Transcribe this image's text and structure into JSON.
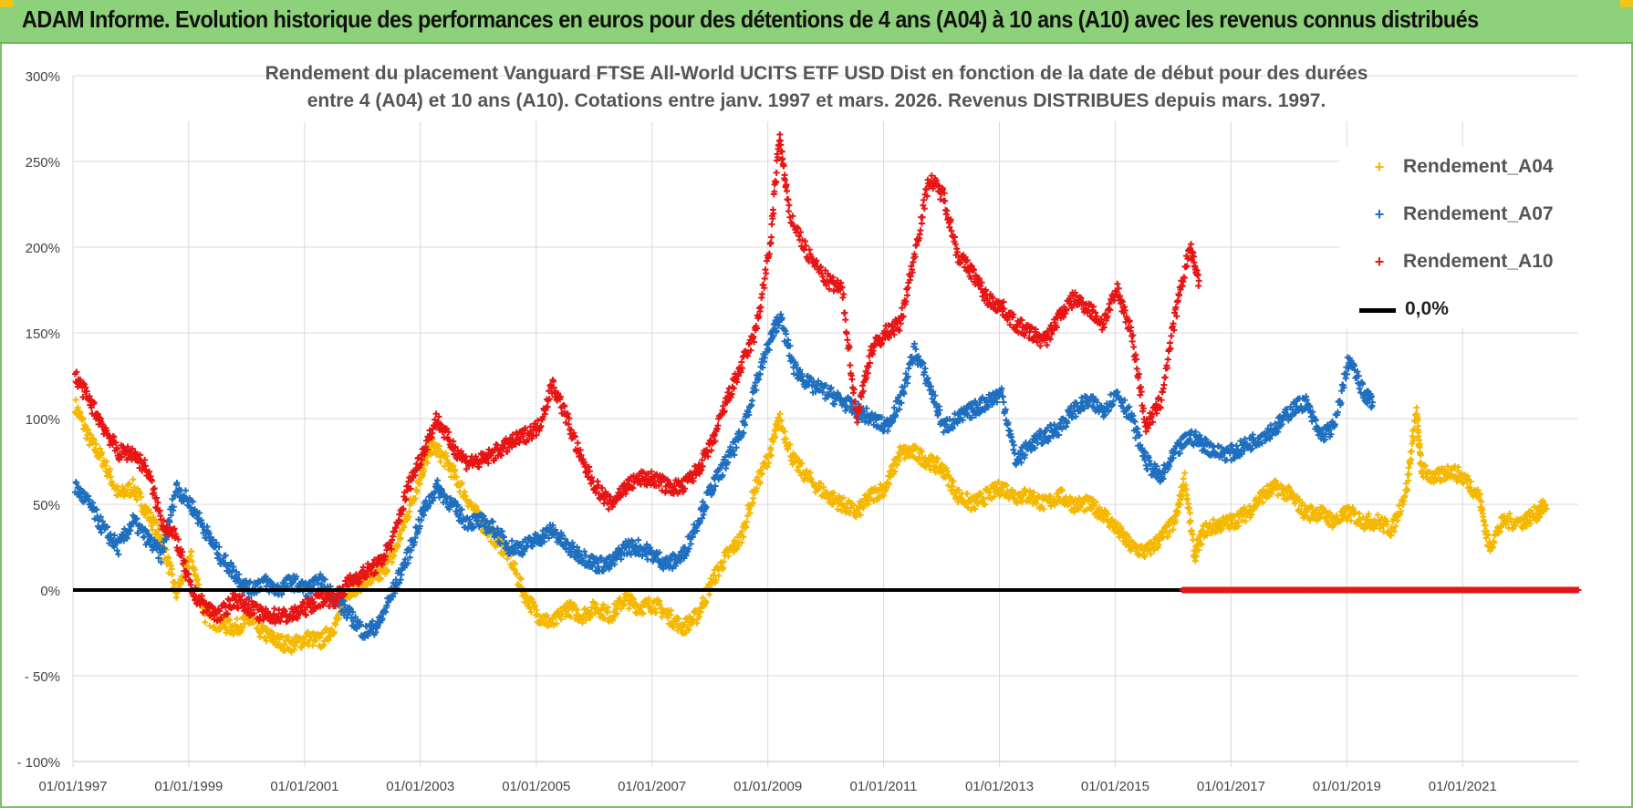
{
  "header": {
    "title": "ADAM Informe. Evolution historique des performances en euros pour des détentions de 4 ans (A04) à 10 ans (A10) avec les revenus connus distribués",
    "background": "#8dd17a"
  },
  "chart_data": {
    "type": "scatter",
    "title_line1": "Rendement du placement Vanguard FTSE All-World UCITS ETF USD Dist en fonction de la date de début pour des durées",
    "title_line2": "entre 4 (A04) et 10 ans (A10).  Cotations entre janv. 1997 et mars. 2026. Revenus DISTRIBUES depuis mars. 1997.",
    "xlabel": "",
    "ylabel": "",
    "x_range": [
      "1997-01-01",
      "2022-12-31"
    ],
    "x_ticks": [
      "01/01/1997",
      "01/01/1999",
      "01/01/2001",
      "01/01/2003",
      "01/01/2005",
      "01/01/2007",
      "01/01/2009",
      "01/01/2011",
      "01/01/2013",
      "01/01/2015",
      "01/01/2017",
      "01/01/2019",
      "01/01/2021"
    ],
    "y_range": [
      -100,
      300
    ],
    "y_ticks": [
      {
        "value": 300,
        "label": "300%"
      },
      {
        "value": 250,
        "label": "250%"
      },
      {
        "value": 200,
        "label": "200%"
      },
      {
        "value": 150,
        "label": "150%"
      },
      {
        "value": 100,
        "label": "100%"
      },
      {
        "value": 50,
        "label": "50%"
      },
      {
        "value": 0,
        "label": "0%"
      },
      {
        "value": -50,
        "label": "- 50%"
      },
      {
        "value": -100,
        "label": "- 100%"
      }
    ],
    "grid": true,
    "legend_position": "top-right",
    "series": [
      {
        "name": "Rendement_A04",
        "color": "#f5b800",
        "points": [
          [
            "1997-01",
            108
          ],
          [
            "1997-04",
            88
          ],
          [
            "1997-07",
            75
          ],
          [
            "1997-10",
            55
          ],
          [
            "1998-01",
            60
          ],
          [
            "1998-04",
            45
          ],
          [
            "1998-07",
            30
          ],
          [
            "1998-10",
            -2
          ],
          [
            "1999-01",
            20
          ],
          [
            "1999-04",
            -15
          ],
          [
            "1999-07",
            -20
          ],
          [
            "1999-10",
            -22
          ],
          [
            "2000-01",
            -18
          ],
          [
            "2000-04",
            -25
          ],
          [
            "2000-07",
            -30
          ],
          [
            "2000-10",
            -32
          ],
          [
            "2001-01",
            -28
          ],
          [
            "2001-04",
            -30
          ],
          [
            "2001-07",
            -20
          ],
          [
            "2001-10",
            0
          ],
          [
            "2002-01",
            5
          ],
          [
            "2002-04",
            8
          ],
          [
            "2002-07",
            20
          ],
          [
            "2002-10",
            45
          ],
          [
            "2003-01",
            70
          ],
          [
            "2003-03",
            85
          ],
          [
            "2003-06",
            75
          ],
          [
            "2003-09",
            60
          ],
          [
            "2004-01",
            40
          ],
          [
            "2004-04",
            30
          ],
          [
            "2004-07",
            20
          ],
          [
            "2004-10",
            -2
          ],
          [
            "2005-01",
            -15
          ],
          [
            "2005-04",
            -20
          ],
          [
            "2005-07",
            -10
          ],
          [
            "2005-10",
            -15
          ],
          [
            "2006-01",
            -10
          ],
          [
            "2006-04",
            -15
          ],
          [
            "2006-07",
            -5
          ],
          [
            "2006-10",
            -10
          ],
          [
            "2007-01",
            -8
          ],
          [
            "2007-04",
            -15
          ],
          [
            "2007-07",
            -22
          ],
          [
            "2007-10",
            -15
          ],
          [
            "2008-01",
            5
          ],
          [
            "2008-04",
            20
          ],
          [
            "2008-07",
            30
          ],
          [
            "2008-10",
            60
          ],
          [
            "2009-01",
            80
          ],
          [
            "2009-03",
            100
          ],
          [
            "2009-06",
            75
          ],
          [
            "2009-09",
            65
          ],
          [
            "2010-01",
            55
          ],
          [
            "2010-04",
            50
          ],
          [
            "2010-07",
            45
          ],
          [
            "2010-10",
            55
          ],
          [
            "2011-01",
            60
          ],
          [
            "2011-04",
            80
          ],
          [
            "2011-07",
            80
          ],
          [
            "2011-10",
            75
          ],
          [
            "2012-01",
            70
          ],
          [
            "2012-04",
            55
          ],
          [
            "2012-07",
            50
          ],
          [
            "2012-10",
            55
          ],
          [
            "2013-01",
            60
          ],
          [
            "2013-04",
            55
          ],
          [
            "2013-07",
            55
          ],
          [
            "2013-10",
            50
          ],
          [
            "2014-01",
            55
          ],
          [
            "2014-04",
            50
          ],
          [
            "2014-07",
            50
          ],
          [
            "2014-10",
            45
          ],
          [
            "2015-01",
            35
          ],
          [
            "2015-04",
            25
          ],
          [
            "2015-07",
            22
          ],
          [
            "2015-10",
            30
          ],
          [
            "2016-01",
            40
          ],
          [
            "2016-03",
            65
          ],
          [
            "2016-05",
            20
          ],
          [
            "2016-07",
            35
          ],
          [
            "2016-10",
            38
          ],
          [
            "2017-01",
            40
          ],
          [
            "2017-04",
            45
          ],
          [
            "2017-07",
            55
          ],
          [
            "2017-10",
            60
          ],
          [
            "2018-01",
            55
          ],
          [
            "2018-04",
            45
          ],
          [
            "2018-07",
            45
          ],
          [
            "2018-10",
            40
          ],
          [
            "2019-01",
            45
          ],
          [
            "2019-04",
            40
          ],
          [
            "2019-07",
            40
          ],
          [
            "2019-10",
            35
          ],
          [
            "2020-01",
            60
          ],
          [
            "2020-03",
            105
          ],
          [
            "2020-04",
            70
          ],
          [
            "2020-07",
            65
          ],
          [
            "2020-10",
            70
          ],
          [
            "2021-01",
            65
          ],
          [
            "2021-04",
            55
          ],
          [
            "2021-06",
            25
          ],
          [
            "2021-09",
            40
          ],
          [
            "2022-01",
            40
          ],
          [
            "2022-04",
            45
          ],
          [
            "2022-06",
            50
          ]
        ]
      },
      {
        "name": "Rendement_A07",
        "color": "#1f6fc0",
        "points": [
          [
            "1997-01",
            60
          ],
          [
            "1997-04",
            50
          ],
          [
            "1997-07",
            35
          ],
          [
            "1997-10",
            25
          ],
          [
            "1998-01",
            40
          ],
          [
            "1998-04",
            30
          ],
          [
            "1998-07",
            20
          ],
          [
            "1998-10",
            60
          ],
          [
            "1999-01",
            50
          ],
          [
            "1999-04",
            35
          ],
          [
            "1999-07",
            20
          ],
          [
            "1999-10",
            10
          ],
          [
            "2000-01",
            0
          ],
          [
            "2000-04",
            5
          ],
          [
            "2000-07",
            0
          ],
          [
            "2000-10",
            5
          ],
          [
            "2001-01",
            0
          ],
          [
            "2001-04",
            5
          ],
          [
            "2001-07",
            -5
          ],
          [
            "2001-10",
            -15
          ],
          [
            "2002-01",
            -25
          ],
          [
            "2002-04",
            -20
          ],
          [
            "2002-07",
            0
          ],
          [
            "2002-10",
            20
          ],
          [
            "2003-01",
            45
          ],
          [
            "2003-04",
            60
          ],
          [
            "2003-07",
            50
          ],
          [
            "2003-10",
            40
          ],
          [
            "2004-01",
            40
          ],
          [
            "2004-04",
            35
          ],
          [
            "2004-07",
            25
          ],
          [
            "2004-10",
            25
          ],
          [
            "2005-01",
            30
          ],
          [
            "2005-04",
            35
          ],
          [
            "2005-07",
            25
          ],
          [
            "2005-10",
            20
          ],
          [
            "2006-01",
            15
          ],
          [
            "2006-04",
            15
          ],
          [
            "2006-07",
            25
          ],
          [
            "2006-10",
            25
          ],
          [
            "2007-01",
            20
          ],
          [
            "2007-04",
            15
          ],
          [
            "2007-07",
            20
          ],
          [
            "2007-10",
            40
          ],
          [
            "2008-01",
            60
          ],
          [
            "2008-04",
            75
          ],
          [
            "2008-07",
            90
          ],
          [
            "2008-10",
            120
          ],
          [
            "2009-01",
            145
          ],
          [
            "2009-03",
            160
          ],
          [
            "2009-06",
            130
          ],
          [
            "2009-09",
            120
          ],
          [
            "2010-01",
            115
          ],
          [
            "2010-04",
            110
          ],
          [
            "2010-07",
            105
          ],
          [
            "2010-10",
            100
          ],
          [
            "2011-01",
            95
          ],
          [
            "2011-04",
            110
          ],
          [
            "2011-07",
            140
          ],
          [
            "2011-10",
            120
          ],
          [
            "2012-01",
            95
          ],
          [
            "2012-04",
            100
          ],
          [
            "2012-07",
            105
          ],
          [
            "2012-10",
            110
          ],
          [
            "2013-01",
            115
          ],
          [
            "2013-04",
            75
          ],
          [
            "2013-07",
            85
          ],
          [
            "2013-10",
            90
          ],
          [
            "2014-01",
            95
          ],
          [
            "2014-04",
            105
          ],
          [
            "2014-07",
            110
          ],
          [
            "2014-10",
            105
          ],
          [
            "2015-01",
            115
          ],
          [
            "2015-04",
            100
          ],
          [
            "2015-07",
            75
          ],
          [
            "2015-10",
            65
          ],
          [
            "2016-01",
            80
          ],
          [
            "2016-04",
            90
          ],
          [
            "2016-07",
            85
          ],
          [
            "2016-10",
            80
          ],
          [
            "2017-01",
            80
          ],
          [
            "2017-04",
            85
          ],
          [
            "2017-07",
            90
          ],
          [
            "2017-10",
            95
          ],
          [
            "2018-01",
            105
          ],
          [
            "2018-04",
            110
          ],
          [
            "2018-07",
            90
          ],
          [
            "2018-10",
            95
          ],
          [
            "2019-01",
            135
          ],
          [
            "2019-04",
            115
          ],
          [
            "2019-06",
            110
          ]
        ]
      },
      {
        "name": "Rendement_A10",
        "color": "#e81515",
        "points": [
          [
            "1997-01",
            125
          ],
          [
            "1997-04",
            110
          ],
          [
            "1997-07",
            95
          ],
          [
            "1997-10",
            80
          ],
          [
            "1998-01",
            80
          ],
          [
            "1998-04",
            70
          ],
          [
            "1998-07",
            40
          ],
          [
            "1998-10",
            30
          ],
          [
            "1999-01",
            0
          ],
          [
            "1999-04",
            -10
          ],
          [
            "1999-07",
            -15
          ],
          [
            "1999-10",
            -5
          ],
          [
            "2000-01",
            -10
          ],
          [
            "2000-04",
            -15
          ],
          [
            "2000-07",
            -15
          ],
          [
            "2000-10",
            -15
          ],
          [
            "2001-01",
            -10
          ],
          [
            "2001-04",
            -5
          ],
          [
            "2001-07",
            -5
          ],
          [
            "2001-10",
            5
          ],
          [
            "2002-01",
            10
          ],
          [
            "2002-04",
            15
          ],
          [
            "2002-07",
            30
          ],
          [
            "2002-10",
            60
          ],
          [
            "2003-01",
            80
          ],
          [
            "2003-04",
            100
          ],
          [
            "2003-07",
            85
          ],
          [
            "2003-10",
            75
          ],
          [
            "2004-01",
            75
          ],
          [
            "2004-04",
            80
          ],
          [
            "2004-07",
            85
          ],
          [
            "2004-10",
            90
          ],
          [
            "2005-01",
            95
          ],
          [
            "2005-04",
            120
          ],
          [
            "2005-07",
            100
          ],
          [
            "2005-10",
            75
          ],
          [
            "2006-01",
            60
          ],
          [
            "2006-04",
            50
          ],
          [
            "2006-07",
            60
          ],
          [
            "2006-10",
            65
          ],
          [
            "2007-01",
            65
          ],
          [
            "2007-04",
            60
          ],
          [
            "2007-07",
            60
          ],
          [
            "2007-10",
            70
          ],
          [
            "2008-01",
            85
          ],
          [
            "2008-04",
            110
          ],
          [
            "2008-07",
            130
          ],
          [
            "2008-10",
            150
          ],
          [
            "2009-01",
            200
          ],
          [
            "2009-03",
            265
          ],
          [
            "2009-05",
            220
          ],
          [
            "2009-09",
            195
          ],
          [
            "2010-01",
            180
          ],
          [
            "2010-04",
            175
          ],
          [
            "2010-07",
            100
          ],
          [
            "2010-10",
            140
          ],
          [
            "2011-01",
            150
          ],
          [
            "2011-04",
            155
          ],
          [
            "2011-07",
            195
          ],
          [
            "2011-10",
            240
          ],
          [
            "2012-01",
            230
          ],
          [
            "2012-04",
            195
          ],
          [
            "2012-07",
            185
          ],
          [
            "2012-10",
            170
          ],
          [
            "2013-01",
            165
          ],
          [
            "2013-04",
            155
          ],
          [
            "2013-07",
            150
          ],
          [
            "2013-10",
            145
          ],
          [
            "2014-01",
            160
          ],
          [
            "2014-04",
            170
          ],
          [
            "2014-07",
            165
          ],
          [
            "2014-10",
            155
          ],
          [
            "2015-01",
            175
          ],
          [
            "2015-04",
            150
          ],
          [
            "2015-07",
            95
          ],
          [
            "2015-10",
            110
          ],
          [
            "2016-01",
            160
          ],
          [
            "2016-04",
            200
          ],
          [
            "2016-06",
            180
          ]
        ]
      },
      {
        "name": "0,0%",
        "color": "#000000",
        "points": [
          [
            "1997-01-01",
            0
          ],
          [
            "2016-03-01",
            0
          ]
        ]
      }
    ],
    "zero_return_points_color": "#e81515",
    "zero_return_points_range": [
      "2016-03-01",
      "2022-12-31"
    ],
    "zero_return_points_value": 0
  }
}
